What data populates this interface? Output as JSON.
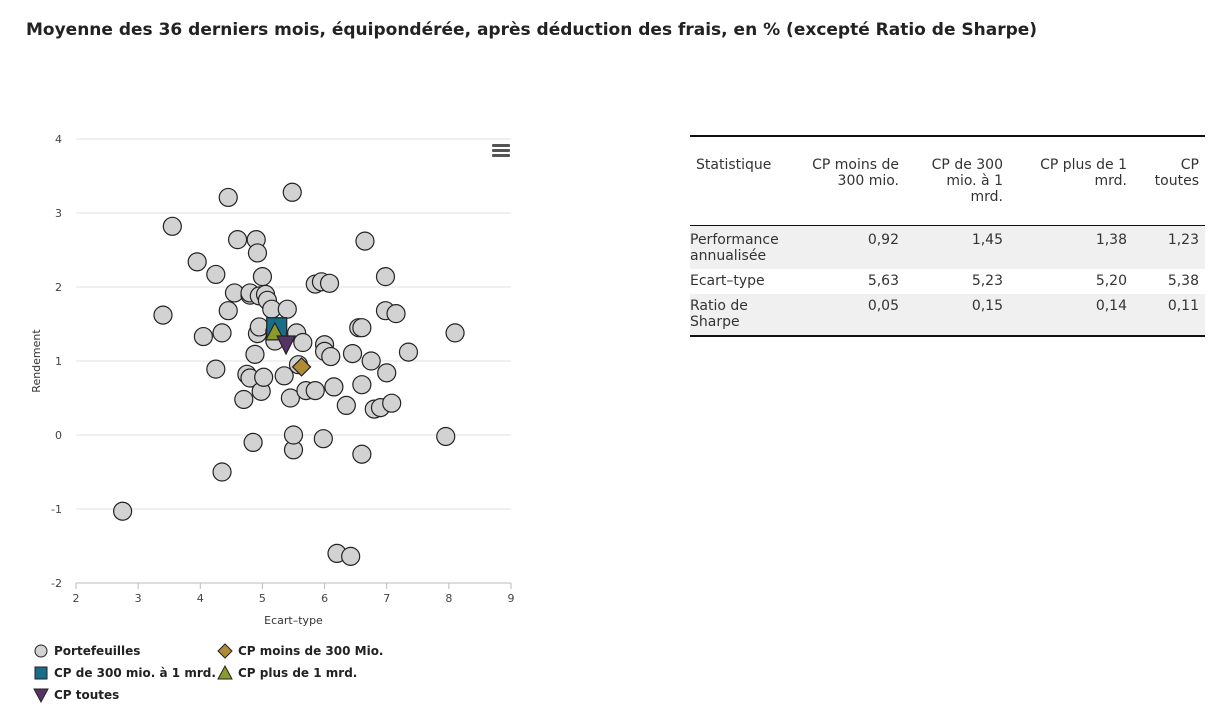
{
  "page": {
    "title": "Moyenne des 36 derniers mois, équipondérée, après déduction des frais, en % (excepté Ratio de Sharpe)"
  },
  "chart_data": {
    "type": "scatter",
    "xlabel": "Ecart–type",
    "ylabel": "Rendement",
    "xlim": [
      2,
      9
    ],
    "ylim": [
      -2,
      4
    ],
    "xticks": [
      2,
      3,
      4,
      5,
      6,
      7,
      8,
      9
    ],
    "yticks": [
      -2,
      -1,
      0,
      1,
      2,
      3,
      4
    ],
    "grid": "horizontal",
    "legend_position": "bottom-left",
    "colors": {
      "portefeuilles": "#d2d2d2",
      "cp_moins_300": "#b08a35",
      "cp_300_1mrd": "#186e88",
      "cp_plus_1mrd": "#8c9a2a",
      "cp_toutes": "#553366"
    },
    "series": [
      {
        "name": "Portefeuilles",
        "marker": "circle",
        "points": [
          [
            2.75,
            -1.03
          ],
          [
            3.4,
            1.62
          ],
          [
            3.55,
            2.82
          ],
          [
            3.95,
            2.34
          ],
          [
            4.05,
            1.33
          ],
          [
            4.25,
            2.17
          ],
          [
            4.25,
            0.89
          ],
          [
            4.35,
            1.38
          ],
          [
            4.35,
            -0.5
          ],
          [
            4.45,
            3.21
          ],
          [
            4.45,
            1.68
          ],
          [
            4.55,
            1.92
          ],
          [
            4.6,
            2.64
          ],
          [
            4.7,
            0.48
          ],
          [
            4.75,
            0.82
          ],
          [
            4.8,
            1.89
          ],
          [
            4.8,
            1.92
          ],
          [
            4.8,
            0.77
          ],
          [
            4.85,
            -0.1
          ],
          [
            4.88,
            1.09
          ],
          [
            4.9,
            2.64
          ],
          [
            4.92,
            2.46
          ],
          [
            4.92,
            1.37
          ],
          [
            4.95,
            1.88
          ],
          [
            4.95,
            1.46
          ],
          [
            4.98,
            0.59
          ],
          [
            5.0,
            2.14
          ],
          [
            5.02,
            0.78
          ],
          [
            5.05,
            1.9
          ],
          [
            5.08,
            1.82
          ],
          [
            5.15,
            1.7
          ],
          [
            5.2,
            1.4
          ],
          [
            5.2,
            1.27
          ],
          [
            5.35,
            0.8
          ],
          [
            5.4,
            1.7
          ],
          [
            5.45,
            0.5
          ],
          [
            5.48,
            3.28
          ],
          [
            5.5,
            -0.2
          ],
          [
            5.5,
            0.0
          ],
          [
            5.55,
            1.38
          ],
          [
            5.58,
            0.95
          ],
          [
            5.65,
            1.25
          ],
          [
            5.7,
            0.6
          ],
          [
            5.85,
            2.04
          ],
          [
            5.85,
            0.6
          ],
          [
            5.95,
            2.07
          ],
          [
            5.98,
            -0.05
          ],
          [
            6.0,
            1.22
          ],
          [
            6.0,
            1.13
          ],
          [
            6.08,
            2.05
          ],
          [
            6.1,
            1.06
          ],
          [
            6.15,
            0.65
          ],
          [
            6.2,
            -1.6
          ],
          [
            6.35,
            0.4
          ],
          [
            6.42,
            -1.64
          ],
          [
            6.45,
            1.1
          ],
          [
            6.55,
            1.45
          ],
          [
            6.6,
            1.45
          ],
          [
            6.6,
            0.68
          ],
          [
            6.6,
            -0.26
          ],
          [
            6.65,
            2.62
          ],
          [
            6.75,
            1.0
          ],
          [
            6.8,
            0.35
          ],
          [
            6.9,
            0.37
          ],
          [
            6.98,
            2.14
          ],
          [
            6.98,
            1.68
          ],
          [
            7.0,
            0.84
          ],
          [
            7.08,
            0.43
          ],
          [
            7.15,
            1.64
          ],
          [
            7.35,
            1.12
          ],
          [
            7.95,
            -0.02
          ],
          [
            8.1,
            1.38
          ]
        ]
      },
      {
        "name": "CP moins de 300 Mio.",
        "marker": "diamond",
        "points": [
          [
            5.63,
            0.92
          ]
        ]
      },
      {
        "name": "CP de 300 mio. à 1 mrd.",
        "marker": "square",
        "points": [
          [
            5.23,
            1.45
          ]
        ]
      },
      {
        "name": "CP plus de 1 mrd.",
        "marker": "triangle-up",
        "points": [
          [
            5.2,
            1.38
          ]
        ]
      },
      {
        "name": "CP toutes",
        "marker": "triangle-down",
        "points": [
          [
            5.38,
            1.23
          ]
        ]
      }
    ]
  },
  "legend": {
    "items": [
      {
        "label": "Portefeuilles"
      },
      {
        "label": "CP moins de 300 Mio."
      },
      {
        "label": "CP de 300 mio. à 1 mrd."
      },
      {
        "label": "CP plus de 1 mrd."
      },
      {
        "label": "CP toutes"
      }
    ]
  },
  "table": {
    "headers": [
      "Statistique",
      "CP moins de 300 mio.",
      "CP de 300 mio. à 1 mrd.",
      "CP plus de 1 mrd.",
      "CP toutes"
    ],
    "rows": [
      {
        "label": "Performance annualisée",
        "values": [
          "0,92",
          "1,45",
          "1,38",
          "1,23"
        ]
      },
      {
        "label": "Ecart–type",
        "values": [
          "5,63",
          "5,23",
          "5,20",
          "5,38"
        ]
      },
      {
        "label": "Ratio de Sharpe",
        "values": [
          "0,05",
          "0,15",
          "0,14",
          "0,11"
        ]
      }
    ]
  }
}
